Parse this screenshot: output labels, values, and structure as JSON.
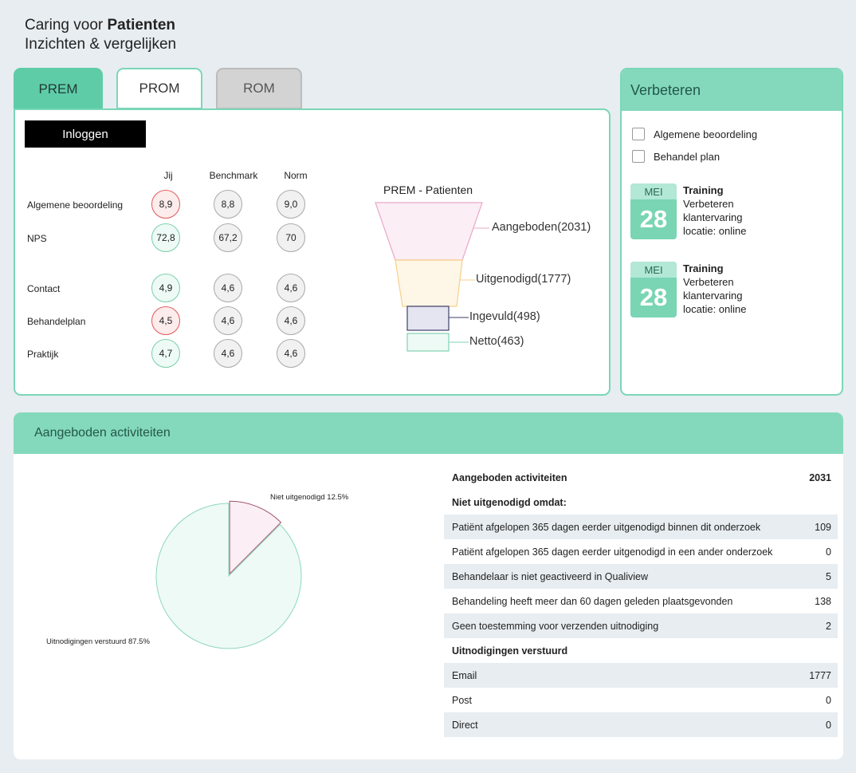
{
  "header": {
    "prefix": "Caring voor",
    "bold": "Patienten",
    "subtitle": "Inzichten & vergelijken"
  },
  "tabs": [
    {
      "label": "PREM"
    },
    {
      "label": "PROM"
    },
    {
      "label": "ROM"
    }
  ],
  "login_label": "Inloggen",
  "scores": {
    "columns": [
      "Jij",
      "Benchmark",
      "Norm"
    ],
    "rows": [
      {
        "label": "Algemene beoordeling",
        "jij": "8,9",
        "benchmark": "8,8",
        "norm": "9,0",
        "status": "red"
      },
      {
        "label": "NPS",
        "jij": "72,8",
        "benchmark": "67,2",
        "norm": "70",
        "status": "green"
      },
      {
        "label": "Contact",
        "jij": "4,9",
        "benchmark": "4,6",
        "norm": "4,6",
        "status": "green"
      },
      {
        "label": "Behandelplan",
        "jij": "4,5",
        "benchmark": "4,6",
        "norm": "4,6",
        "status": "red"
      },
      {
        "label": "Praktijk",
        "jij": "4,7",
        "benchmark": "4,6",
        "norm": "4,6",
        "status": "green"
      }
    ]
  },
  "funnel": {
    "title": "PREM - Patienten",
    "stages": [
      {
        "label": "Aangeboden(2031)",
        "value": 2031,
        "fill": "#fbeef5",
        "stroke": "#e9a9c8"
      },
      {
        "label": "Uitgenodigd(1777)",
        "value": 1777,
        "fill": "#fef6e6",
        "stroke": "#f6d08a"
      },
      {
        "label": "Ingevuld(498)",
        "value": 498,
        "fill": "#e4e5f1",
        "stroke": "#3d3f6a"
      },
      {
        "label": "Netto(463)",
        "value": 463,
        "fill": "#eefaf5",
        "stroke": "#82d3b3"
      }
    ]
  },
  "side": {
    "title": "Verbeteren",
    "checks": [
      {
        "label": "Algemene beoordeling"
      },
      {
        "label": "Behandel plan"
      }
    ],
    "events": [
      {
        "month": "MEI",
        "day": "28",
        "title": "Training",
        "lines": [
          "Verbeteren",
          "klantervaring",
          "locatie: online"
        ]
      },
      {
        "month": "MEI",
        "day": "28",
        "title": "Training",
        "lines": [
          "Verbeteren",
          "klantervaring",
          "locatie: online"
        ]
      }
    ]
  },
  "activities": {
    "title": "Aangeboden activiteiten",
    "rows": [
      {
        "label": "Aangeboden activiteiten",
        "value": "2031",
        "bold": true,
        "alt": false
      },
      {
        "label": "Niet uitgenodigd omdat:",
        "value": "",
        "bold": true,
        "alt": false
      },
      {
        "label": "Patiënt afgelopen 365 dagen eerder uitgenodigd binnen dit onderzoek",
        "value": "109",
        "bold": false,
        "alt": true
      },
      {
        "label": "Patiënt afgelopen 365 dagen eerder uitgenodigd in een ander onderzoek",
        "value": "0",
        "bold": false,
        "alt": false
      },
      {
        "label": "Behandelaar is niet geactiveerd in Qualiview",
        "value": "5",
        "bold": false,
        "alt": true
      },
      {
        "label": "Behandeling heeft meer dan 60 dagen geleden plaatsgevonden",
        "value": "138",
        "bold": false,
        "alt": false
      },
      {
        "label": "Geen toestemming voor verzenden uitnodiging",
        "value": "2",
        "bold": false,
        "alt": true
      },
      {
        "label": "Uitnodigingen verstuurd",
        "value": "",
        "bold": true,
        "alt": false
      },
      {
        "label": "Email",
        "value": "1777",
        "bold": false,
        "alt": true
      },
      {
        "label": "Post",
        "value": "0",
        "bold": false,
        "alt": false
      },
      {
        "label": "Direct",
        "value": "0",
        "bold": false,
        "alt": true
      }
    ]
  },
  "chart_data": {
    "type": "pie",
    "slices": [
      {
        "label": "Niet uitgenodigd 12.5%",
        "value": 12.5,
        "fill": "#fbeef5",
        "stroke": "#a3566f"
      },
      {
        "label": "Uitnodigingen verstuurd 87.5%",
        "value": 87.5,
        "fill": "#eefaf5",
        "stroke": "#8fd8bb"
      }
    ]
  }
}
